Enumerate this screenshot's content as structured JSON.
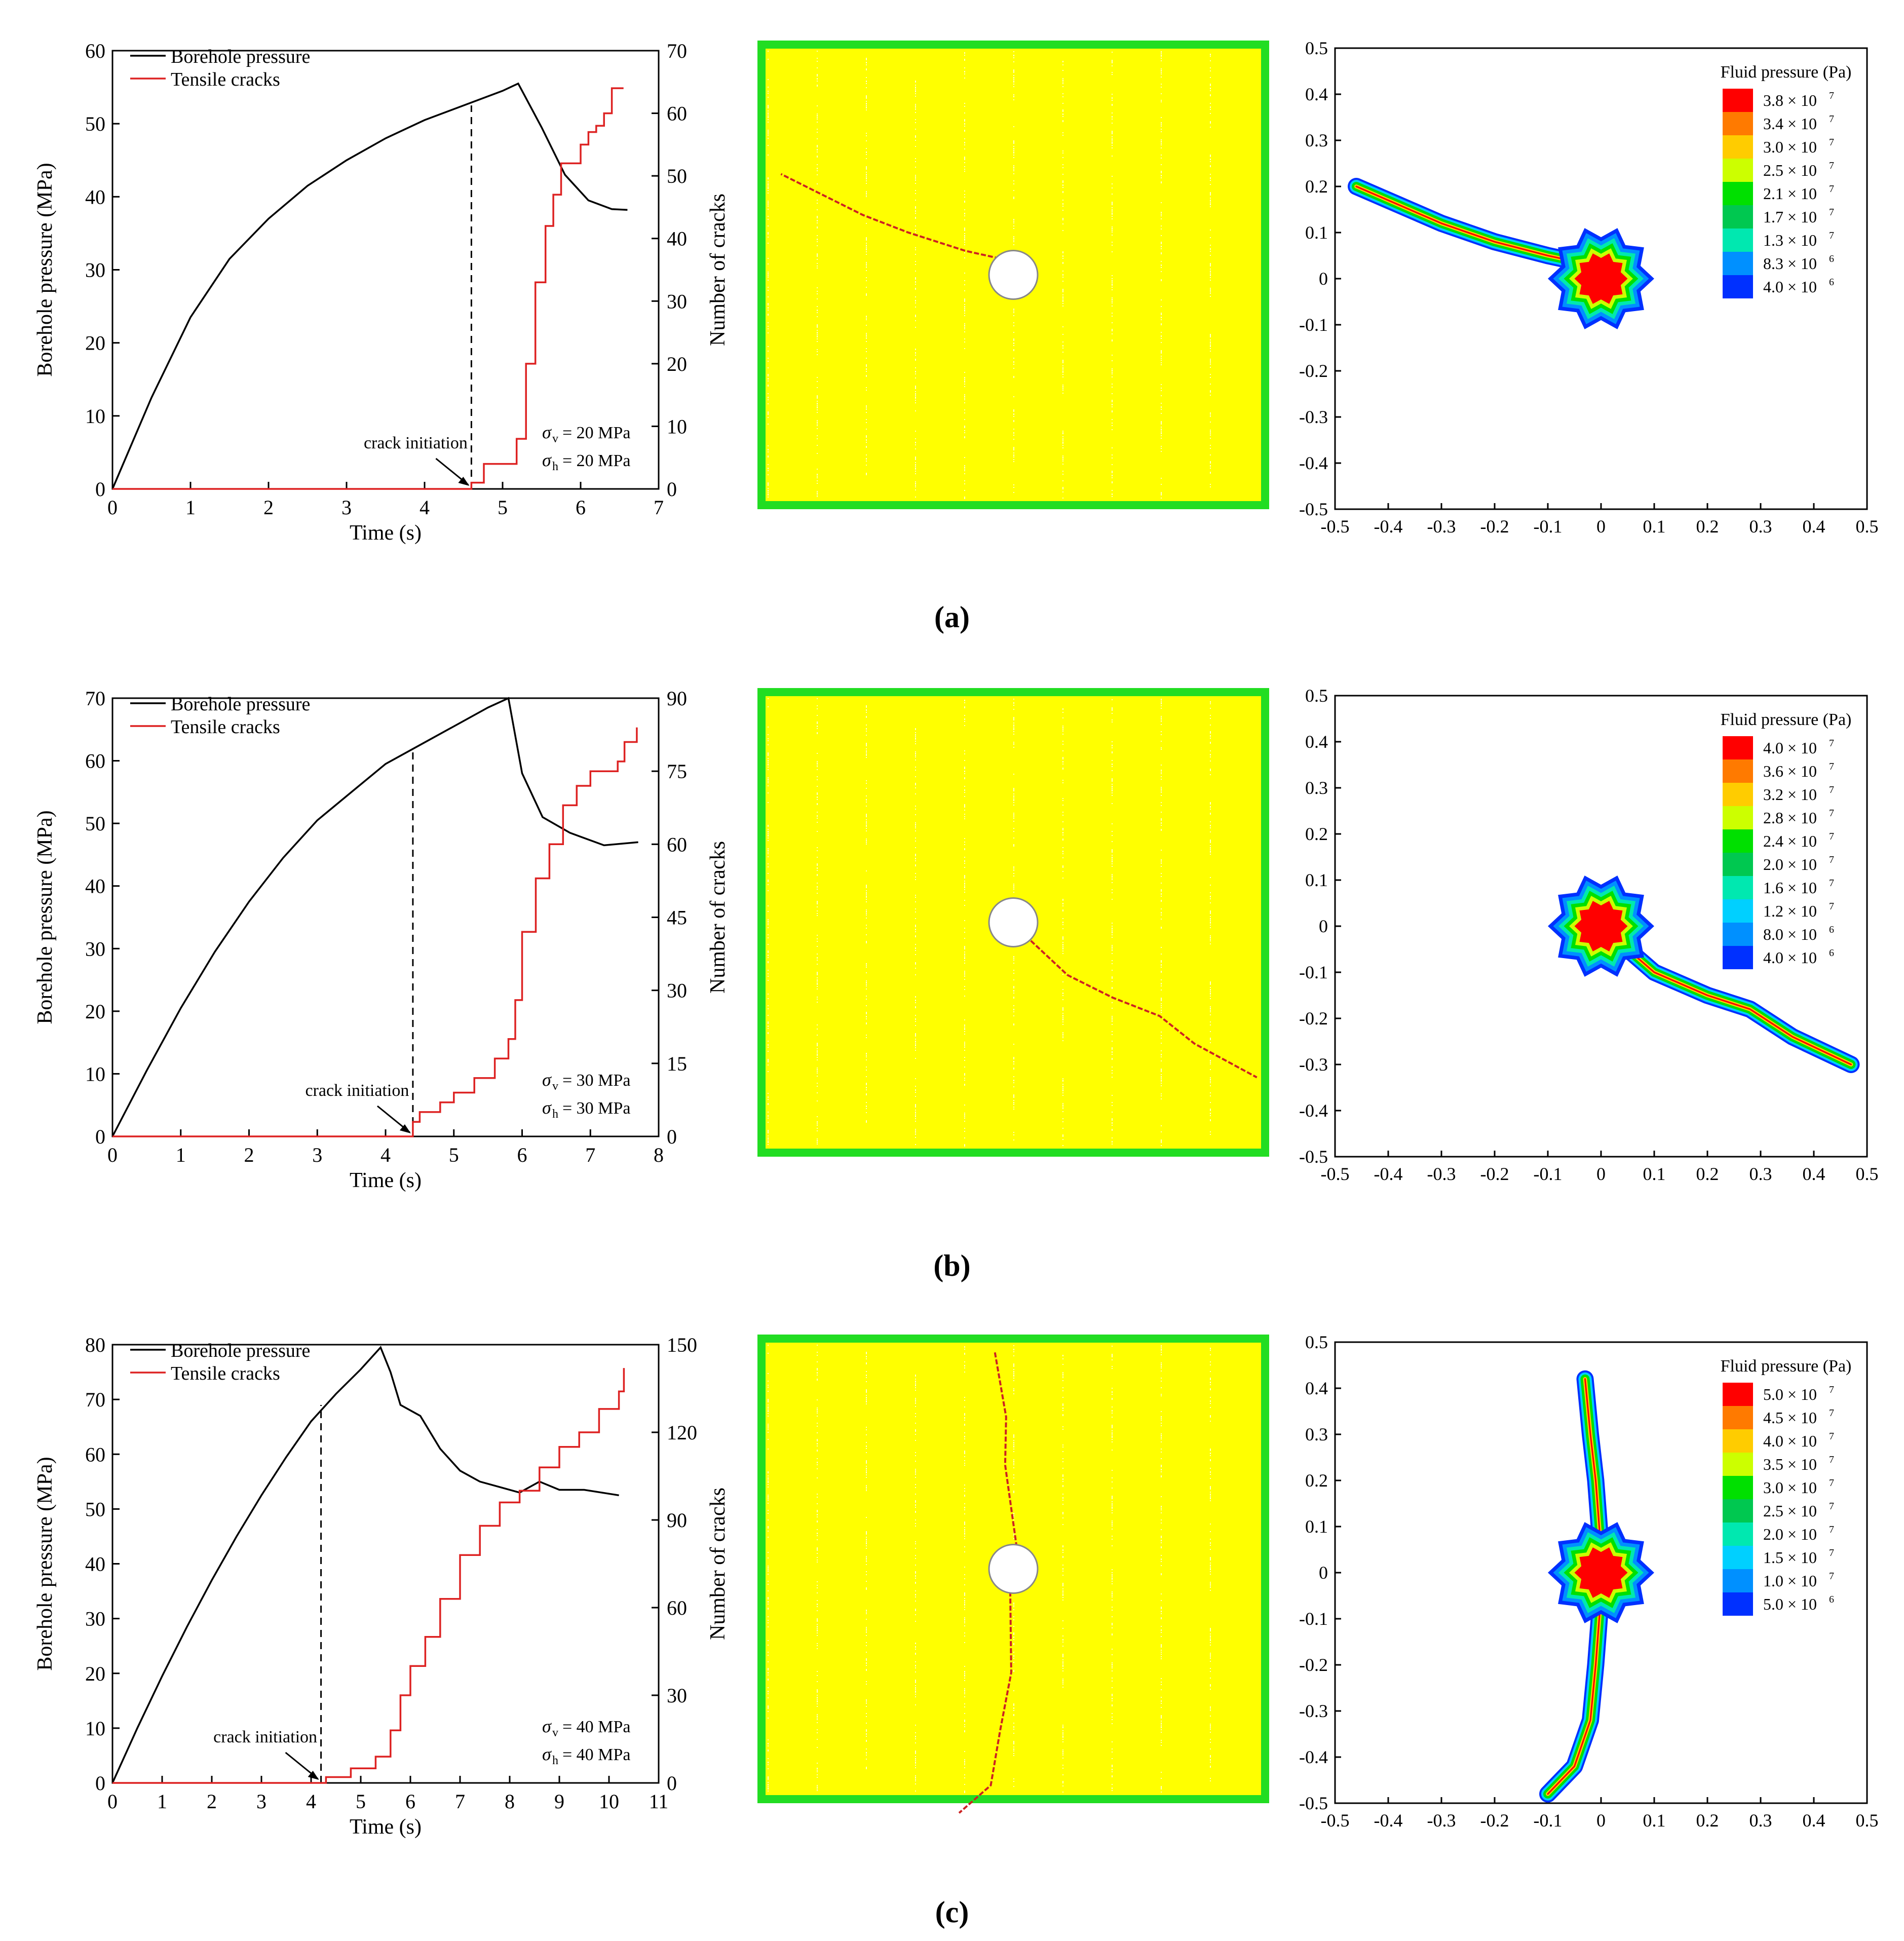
{
  "figure_labels": [
    "(a)",
    "(b)",
    "(c)"
  ],
  "colors": {
    "pressure": "#000000",
    "cracks": "#dd2222",
    "specimen": "#ffff00",
    "wall": "#22dd22",
    "crack_trace": "#cc2222"
  },
  "colorbar_colors": [
    "#ff0000",
    "#ff7a00",
    "#ffcc00",
    "#ccff00",
    "#00e000",
    "#00c850",
    "#00e8b0",
    "#00d0ff",
    "#0090ff",
    "#0030ff"
  ],
  "chart_data": [
    {
      "type": "line",
      "panel": "a-pressure-cracks",
      "xlabel": "Time (s)",
      "ylabel": "Borehole pressure (MPa)",
      "y2label": "Number of cracks",
      "xlim": [
        0,
        7
      ],
      "ylim": [
        0,
        60
      ],
      "y2lim": [
        0,
        70
      ],
      "xticks": [
        0,
        1,
        2,
        3,
        4,
        5,
        6,
        7
      ],
      "yticks": [
        0,
        10,
        20,
        30,
        40,
        50,
        60
      ],
      "y2ticks": [
        0,
        10,
        20,
        30,
        40,
        50,
        60,
        70
      ],
      "legend": [
        "Borehole pressure",
        "Tensile cracks"
      ],
      "annotation": "crack initiation",
      "initiation_time": 4.6,
      "initiation_pressure": 52.5,
      "stress_v": "= 20 MPa",
      "stress_h": "= 20 MPa",
      "series": [
        {
          "name": "Borehole pressure",
          "x": [
            0,
            0.5,
            1,
            1.5,
            2,
            2.5,
            3,
            3.5,
            4,
            4.5,
            5,
            5.2,
            5.5,
            5.8,
            6.1,
            6.4,
            6.6
          ],
          "values": [
            0,
            12.5,
            23.5,
            31.5,
            37,
            41.5,
            45,
            48,
            50.5,
            52.5,
            54.5,
            55.5,
            49.5,
            43,
            39.5,
            38.3,
            38.2
          ]
        },
        {
          "name": "Tensile cracks",
          "x": [
            0,
            4.6,
            4.6,
            4.76,
            4.76,
            5.1,
            5.18,
            5.3,
            5.42,
            5.55,
            5.65,
            5.75,
            5.85,
            6.0,
            6.1,
            6.2,
            6.3,
            6.4,
            6.55
          ],
          "values": [
            0,
            0,
            1,
            1,
            4,
            4,
            8,
            20,
            33,
            42,
            47,
            52,
            52,
            55,
            57,
            58,
            60,
            64,
            64
          ]
        }
      ]
    },
    {
      "type": "line",
      "panel": "b-pressure-cracks",
      "xlabel": "Time (s)",
      "ylabel": "Borehole pressure (MPa)",
      "y2label": "Number of cracks",
      "xlim": [
        0,
        8
      ],
      "ylim": [
        0,
        70
      ],
      "y2lim": [
        0,
        90
      ],
      "xticks": [
        0,
        1,
        2,
        3,
        4,
        5,
        6,
        7,
        8
      ],
      "yticks": [
        0,
        10,
        20,
        30,
        40,
        50,
        60,
        70
      ],
      "y2ticks": [
        0,
        15,
        30,
        45,
        60,
        75,
        90
      ],
      "legend": [
        "Borehole pressure",
        "Tensile cracks"
      ],
      "annotation": "crack initiation",
      "initiation_time": 4.4,
      "initiation_pressure": 61.5,
      "stress_v": "= 30 MPa",
      "stress_h": "= 30 MPa",
      "series": [
        {
          "name": "Borehole pressure",
          "x": [
            0,
            0.5,
            1,
            1.5,
            2,
            2.5,
            3,
            3.5,
            4,
            4.5,
            5,
            5.5,
            5.8,
            6.0,
            6.3,
            6.7,
            7.2,
            7.7
          ],
          "values": [
            0,
            10.5,
            20.5,
            29.5,
            37.5,
            44.5,
            50.5,
            55,
            59.5,
            62.5,
            65.5,
            68.5,
            70,
            58,
            51,
            48.5,
            46.5,
            47
          ]
        },
        {
          "name": "Tensile cracks",
          "x": [
            0,
            4.4,
            4.4,
            4.5,
            4.5,
            4.8,
            5.0,
            5.3,
            5.6,
            5.8,
            5.9,
            6.0,
            6.2,
            6.4,
            6.6,
            6.8,
            7.0,
            7.4,
            7.5,
            7.5,
            7.68
          ],
          "values": [
            0,
            0,
            3,
            3,
            5,
            7,
            9,
            12,
            16,
            20,
            28,
            42,
            53,
            60,
            68,
            72,
            75,
            77,
            77,
            81,
            84
          ]
        }
      ]
    },
    {
      "type": "line",
      "panel": "c-pressure-cracks",
      "xlabel": "Time (s)",
      "ylabel": "Borehole pressure (MPa)",
      "y2label": "Number of cracks",
      "xlim": [
        0,
        11
      ],
      "ylim": [
        0,
        80
      ],
      "y2lim": [
        0,
        150
      ],
      "xticks": [
        0,
        1,
        2,
        3,
        4,
        5,
        6,
        7,
        8,
        9,
        10,
        11
      ],
      "yticks": [
        0,
        10,
        20,
        30,
        40,
        50,
        60,
        70,
        80
      ],
      "y2ticks": [
        0,
        30,
        60,
        90,
        120,
        150
      ],
      "legend": [
        "Borehole pressure",
        "Tensile cracks"
      ],
      "annotation": "crack initiation",
      "initiation_time": 4.2,
      "initiation_pressure": 69,
      "stress_v": "= 40 MPa",
      "stress_h": "= 40 MPa",
      "series": [
        {
          "name": "Borehole pressure",
          "x": [
            0,
            0.5,
            1,
            1.5,
            2,
            2.5,
            3,
            3.5,
            4,
            4.5,
            5,
            5.4,
            5.6,
            5.8,
            6.2,
            6.6,
            7.0,
            7.4,
            7.8,
            8.2,
            8.6,
            9.0,
            9.5,
            10.2
          ],
          "values": [
            0,
            10,
            19.5,
            28.5,
            37,
            45,
            52.5,
            59.5,
            66,
            71,
            75.5,
            79.5,
            75,
            69,
            67,
            61,
            57,
            55,
            54,
            53,
            55,
            53.5,
            53.5,
            52.5
          ]
        },
        {
          "name": "Tensile cracks",
          "x": [
            0,
            4.2,
            4.3,
            4.8,
            5.3,
            5.6,
            5.8,
            6.0,
            6.3,
            6.6,
            7.0,
            7.4,
            7.8,
            8.2,
            8.6,
            9.0,
            9.4,
            9.8,
            10.2,
            10.3
          ],
          "values": [
            0,
            0,
            2,
            5,
            9,
            18,
            30,
            40,
            50,
            63,
            78,
            88,
            96,
            100,
            108,
            115,
            120,
            128,
            134,
            142
          ]
        }
      ]
    },
    {
      "type": "heatmap",
      "panel": "a-fluid-pressure",
      "colorbar_title": "Fluid pressure (Pa)",
      "colorbar_labels": [
        "3.8 × 10",
        "3.4 × 10",
        "3.0 × 10",
        "2.5 × 10",
        "2.1 × 10",
        "1.7 × 10",
        "1.3 × 10",
        "8.3 × 10",
        "4.0 × 10"
      ],
      "colorbar_exponents": [
        "7",
        "7",
        "7",
        "7",
        "7",
        "7",
        "7",
        "6",
        "6"
      ],
      "xlim": [
        -0.5,
        0.5
      ],
      "ylim": [
        -0.5,
        0.5
      ],
      "xticks": [
        -0.5,
        -0.4,
        -0.3,
        -0.2,
        -0.1,
        0,
        0.1,
        0.2,
        0.3,
        0.4,
        0.5
      ],
      "yticks": [
        -0.5,
        -0.4,
        -0.3,
        -0.2,
        -0.1,
        0,
        0.1,
        0.2,
        0.3,
        0.4,
        0.5
      ],
      "core": [
        0,
        0
      ],
      "core_radius": 0.1,
      "fracture_path": [
        [
          0.02,
          0.02
        ],
        [
          -0.1,
          0.05
        ],
        [
          -0.2,
          0.08
        ],
        [
          -0.3,
          0.12
        ],
        [
          -0.38,
          0.16
        ],
        [
          -0.46,
          0.2
        ]
      ]
    },
    {
      "type": "heatmap",
      "panel": "b-fluid-pressure",
      "colorbar_title": "Fluid pressure (Pa)",
      "colorbar_labels": [
        "4.0 × 10",
        "3.6 × 10",
        "3.2 × 10",
        "2.8 × 10",
        "2.4 × 10",
        "2.0 × 10",
        "1.6 × 10",
        "1.2 × 10",
        "8.0 × 10",
        "4.0 × 10"
      ],
      "colorbar_exponents": [
        "7",
        "7",
        "7",
        "7",
        "7",
        "7",
        "7",
        "7",
        "6",
        "6"
      ],
      "xlim": [
        -0.5,
        0.5
      ],
      "ylim": [
        -0.5,
        0.5
      ],
      "xticks": [
        -0.5,
        -0.4,
        -0.3,
        -0.2,
        -0.1,
        0,
        0.1,
        0.2,
        0.3,
        0.4,
        0.5
      ],
      "yticks": [
        -0.5,
        -0.4,
        -0.3,
        -0.2,
        -0.1,
        0,
        0.1,
        0.2,
        0.3,
        0.4,
        0.5
      ],
      "core": [
        0,
        0
      ],
      "core_radius": 0.1,
      "fracture_path": [
        [
          0.02,
          -0.02
        ],
        [
          0.1,
          -0.1
        ],
        [
          0.2,
          -0.15
        ],
        [
          0.28,
          -0.18
        ],
        [
          0.36,
          -0.24
        ],
        [
          0.47,
          -0.3
        ]
      ]
    },
    {
      "type": "heatmap",
      "panel": "c-fluid-pressure",
      "colorbar_title": "Fluid pressure (Pa)",
      "colorbar_labels": [
        "5.0 × 10",
        "4.5 × 10",
        "4.0 × 10",
        "3.5 × 10",
        "3.0 × 10",
        "2.5 × 10",
        "2.0 × 10",
        "1.5 × 10",
        "1.0 × 10",
        "5.0 × 10"
      ],
      "colorbar_exponents": [
        "7",
        "7",
        "7",
        "7",
        "7",
        "7",
        "7",
        "7",
        "7",
        "6"
      ],
      "xlim": [
        -0.5,
        0.5
      ],
      "ylim": [
        -0.5,
        0.5
      ],
      "xticks": [
        -0.5,
        -0.4,
        -0.3,
        -0.2,
        -0.1,
        0,
        0.1,
        0.2,
        0.3,
        0.4,
        0.5
      ],
      "yticks": [
        -0.5,
        -0.4,
        -0.3,
        -0.2,
        -0.1,
        0,
        0.1,
        0.2,
        0.3,
        0.4,
        0.5
      ],
      "core": [
        0,
        0
      ],
      "core_radius": 0.1,
      "fracture_path": [
        [
          -0.03,
          0.42
        ],
        [
          -0.02,
          0.3
        ],
        [
          -0.01,
          0.2
        ],
        [
          0,
          0.05
        ],
        [
          0,
          -0.05
        ],
        [
          -0.01,
          -0.2
        ],
        [
          -0.02,
          -0.32
        ],
        [
          -0.05,
          -0.42
        ],
        [
          -0.1,
          -0.48
        ]
      ]
    }
  ]
}
